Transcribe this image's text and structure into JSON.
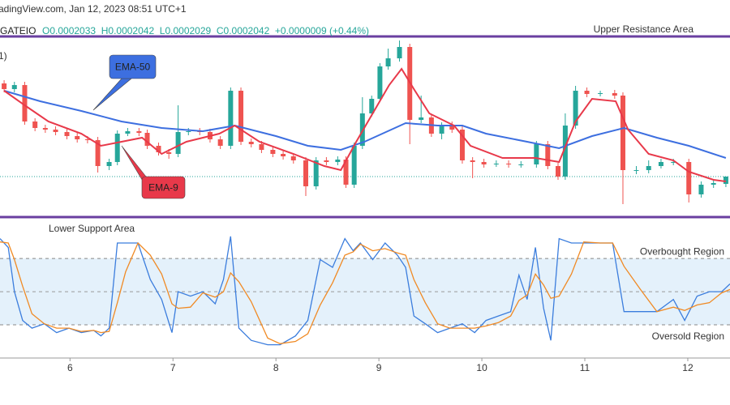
{
  "chart_data": [
    {
      "type": "candlestick",
      "header": "adingView.com, Jan 12, 2023 08:51 UTC+1",
      "symbol": "GATEIO",
      "ohlc_text": "O0.0002033  H0.0002042  L0.0002029  C0.0002042  +0.0000009 (+0.44%)",
      "fragment": "1)",
      "xlim": [
        5.32,
        12.41
      ],
      "ylim": [
        0.000199,
        0.0002225
      ],
      "up_color": "#26a69a",
      "down_color": "#ef5350",
      "x": [
        5.36,
        5.46,
        5.56,
        5.66,
        5.76,
        5.86,
        5.97,
        6.07,
        6.17,
        6.27,
        6.38,
        6.46,
        6.56,
        6.67,
        6.75,
        6.86,
        6.96,
        7.05,
        7.15,
        7.26,
        7.36,
        7.46,
        7.56,
        7.66,
        7.76,
        7.86,
        7.97,
        8.07,
        8.17,
        8.29,
        8.39,
        8.49,
        8.6,
        8.68,
        8.76,
        8.84,
        8.93,
        9.01,
        9.09,
        9.2,
        9.3,
        9.41,
        9.51,
        9.61,
        9.71,
        9.81,
        9.91,
        10.02,
        10.14,
        10.26,
        10.38,
        10.53,
        10.64,
        10.74,
        10.81,
        10.91,
        11.02,
        11.15,
        11.29,
        11.37,
        11.5,
        11.62,
        11.74,
        11.86,
        12.01,
        12.13,
        12.25,
        12.37
      ],
      "open": [
        0.0002157,
        0.000215,
        0.0002155,
        0.000211,
        0.0002102,
        0.00021,
        0.0002097,
        0.0002092,
        0.0002088,
        0.0002087,
        0.0002055,
        0.000206,
        0.0002095,
        0.0002098,
        0.0002096,
        0.000208,
        0.0002072,
        0.000207,
        0.0002097,
        0.0002098,
        0.0002097,
        0.0002088,
        0.000208,
        0.0002148,
        0.0002085,
        0.0002082,
        0.0002075,
        0.000207,
        0.0002067,
        0.0002062,
        0.000203,
        0.0002062,
        0.000206,
        0.0002063,
        0.0002032,
        0.000208,
        0.000212,
        0.0002138,
        0.0002178,
        0.0002188,
        0.0002202,
        0.0002112,
        0.0002115,
        0.0002095,
        0.0002105,
        0.00021,
        0.0002062,
        0.000206,
        0.0002057,
        0.0002058,
        0.0002057,
        0.0002057,
        0.0002082,
        0.0002055,
        0.0002042,
        0.0002105,
        0.0002148,
        0.0002144,
        0.0002145,
        0.0002142,
        0.000205,
        0.000205,
        0.0002055,
        0.000206,
        0.000206,
        0.000202,
        0.0002032,
        0.0002033
      ],
      "high": [
        0.0002161,
        0.0002159,
        0.0002159,
        0.0002114,
        0.0002106,
        0.0002104,
        0.0002101,
        0.0002096,
        0.0002092,
        0.0002091,
        0.0002064,
        0.0002099,
        0.0002102,
        0.0002102,
        0.00021,
        0.0002084,
        0.0002076,
        0.000213,
        0.0002102,
        0.0002102,
        0.0002101,
        0.0002092,
        0.0002152,
        0.0002152,
        0.0002089,
        0.0002086,
        0.0002079,
        0.0002074,
        0.0002071,
        0.0002066,
        0.0002066,
        0.0002066,
        0.0002067,
        0.0002067,
        0.0002084,
        0.000214,
        0.0002142,
        0.0002182,
        0.00022,
        0.000221,
        0.0002206,
        0.0002142,
        0.0002119,
        0.0002109,
        0.000211,
        0.0002104,
        0.0002066,
        0.0002064,
        0.0002062,
        0.0002062,
        0.0002061,
        0.0002086,
        0.0002086,
        0.0002059,
        0.000212,
        0.0002154,
        0.0002152,
        0.0002148,
        0.0002149,
        0.0002146,
        0.0002055,
        0.0002062,
        0.0002064,
        0.0002064,
        0.0002064,
        0.0002036,
        0.0002038,
        0.0002042
      ],
      "low": [
        0.0002146,
        0.0002146,
        0.0002106,
        0.0002098,
        0.0002096,
        0.0002093,
        0.0002088,
        0.0002084,
        0.0002083,
        0.0002047,
        0.000205,
        0.0002056,
        0.0002092,
        0.0002092,
        0.0002076,
        0.0002068,
        0.0002064,
        0.0002066,
        0.0002093,
        0.0002093,
        0.0002084,
        0.0002076,
        0.0002076,
        0.0002081,
        0.0002078,
        0.0002071,
        0.0002066,
        0.0002063,
        0.0002058,
        0.0002018,
        0.0002026,
        0.0002056,
        0.0002056,
        0.0002028,
        0.0002028,
        0.0002076,
        0.0002116,
        0.0002134,
        0.0002174,
        0.0002184,
        0.0002082,
        0.0002108,
        0.0002091,
        0.0002088,
        0.0002096,
        0.0002058,
        0.000204,
        0.0002053,
        0.0002054,
        0.0002053,
        0.0002053,
        0.0002053,
        0.0002051,
        0.0002038,
        0.0002038,
        0.0002101,
        0.000214,
        0.0002141,
        0.0002138,
        0.0002008,
        0.0002045,
        0.0002046,
        0.0002052,
        0.0002056,
        0.000201,
        0.0002016,
        0.0002028,
        0.0002029
      ],
      "close": [
        0.000215,
        0.0002155,
        0.000211,
        0.0002102,
        0.00021,
        0.0002097,
        0.0002092,
        0.0002088,
        0.0002087,
        0.0002055,
        0.000206,
        0.0002095,
        0.0002098,
        0.0002096,
        0.000208,
        0.0002072,
        0.000207,
        0.0002097,
        0.0002098,
        0.0002097,
        0.0002088,
        0.000208,
        0.0002148,
        0.0002085,
        0.0002082,
        0.0002075,
        0.000207,
        0.0002067,
        0.0002062,
        0.000203,
        0.0002062,
        0.000206,
        0.0002063,
        0.0002032,
        0.000208,
        0.000212,
        0.0002138,
        0.0002178,
        0.0002188,
        0.0002202,
        0.0002112,
        0.0002115,
        0.0002095,
        0.0002105,
        0.00021,
        0.0002062,
        0.000206,
        0.0002057,
        0.0002058,
        0.0002057,
        0.0002057,
        0.0002082,
        0.0002055,
        0.0002042,
        0.0002105,
        0.0002148,
        0.0002144,
        0.0002145,
        0.0002142,
        0.000205,
        0.000205,
        0.0002055,
        0.000206,
        0.000206,
        0.000202,
        0.0002032,
        0.0002034,
        0.0002042
      ],
      "series": [
        {
          "name": "EMA-50",
          "color": "#3d6fe0",
          "x": [
            5.36,
            5.71,
            6.11,
            6.5,
            6.89,
            7.29,
            7.6,
            8.0,
            8.31,
            8.63,
            8.86,
            9.26,
            9.57,
            9.81,
            10.04,
            10.44,
            10.75,
            11.07,
            11.38,
            11.7,
            12.01,
            12.37
          ],
          "values": [
            0.0002148,
            0.0002135,
            0.0002123,
            0.000211,
            0.0002102,
            0.0002098,
            0.0002105,
            0.0002092,
            0.000208,
            0.0002075,
            0.0002085,
            0.0002108,
            0.0002105,
            0.0002105,
            0.0002095,
            0.0002085,
            0.0002077,
            0.0002092,
            0.0002102,
            0.000209,
            0.000208,
            0.0002065
          ]
        },
        {
          "name": "EMA-9",
          "color": "#e8394a",
          "x": [
            5.36,
            5.56,
            5.79,
            6.11,
            6.3,
            6.5,
            6.7,
            6.89,
            7.13,
            7.45,
            7.6,
            7.84,
            8.17,
            8.47,
            8.63,
            8.78,
            8.94,
            9.1,
            9.22,
            9.34,
            9.49,
            9.73,
            9.89,
            10.2,
            10.52,
            10.75,
            10.91,
            11.07,
            11.3,
            11.42,
            11.62,
            11.86,
            12.01,
            12.25,
            12.37
          ],
          "values": [
            0.0002148,
            0.000213,
            0.000211,
            0.0002095,
            0.000208,
            0.0002085,
            0.000209,
            0.000207,
            0.0002085,
            0.0002095,
            0.0002105,
            0.0002085,
            0.000207,
            0.0002055,
            0.000205,
            0.0002085,
            0.000212,
            0.0002155,
            0.0002175,
            0.000215,
            0.000212,
            0.0002105,
            0.000208,
            0.0002065,
            0.0002065,
            0.000206,
            0.000211,
            0.0002138,
            0.0002135,
            0.00021,
            0.000207,
            0.0002062,
            0.0002048,
            0.0002038,
            0.0002036
          ]
        }
      ],
      "levels": [
        {
          "label": "Upper Resistance Area",
          "value": 0.0002215,
          "color": "#6a3fa0"
        },
        {
          "label": "Lower Support Area",
          "value": 0.0001992,
          "color": "#6a3fa0"
        }
      ],
      "price_line": 0.0002042,
      "price_line_color": "#26a69a"
    },
    {
      "type": "line",
      "xlim": [
        5.32,
        12.41
      ],
      "ylim": [
        -10,
        116
      ],
      "xticks": [
        6,
        7,
        8,
        9,
        10,
        11,
        12
      ],
      "x": [
        5.32,
        5.4,
        5.46,
        5.54,
        5.63,
        5.75,
        5.87,
        5.99,
        6.11,
        6.23,
        6.3,
        6.38,
        6.46,
        6.54,
        6.66,
        6.78,
        6.89,
        6.99,
        7.05,
        7.17,
        7.29,
        7.41,
        7.49,
        7.56,
        7.64,
        7.76,
        7.92,
        8.04,
        8.19,
        8.31,
        8.43,
        8.55,
        8.67,
        8.75,
        8.82,
        8.94,
        9.06,
        9.18,
        9.26,
        9.34,
        9.45,
        9.57,
        9.69,
        9.81,
        9.93,
        10.04,
        10.16,
        10.28,
        10.36,
        10.44,
        10.52,
        10.6,
        10.67,
        10.75,
        10.87,
        10.99,
        11.15,
        11.27,
        11.38,
        11.54,
        11.7,
        11.86,
        11.97,
        12.09,
        12.21,
        12.33,
        12.41
      ],
      "series": [
        {
          "color": "#3b7ddd",
          "values": [
            98,
            90,
            50,
            24,
            17,
            21,
            13,
            17,
            13,
            15,
            10,
            17,
            94,
            94,
            94,
            61,
            43,
            13,
            50,
            46,
            50,
            39,
            61,
            100,
            17,
            6,
            2,
            2,
            10,
            24,
            79,
            72,
            98,
            87,
            94,
            79,
            94,
            83,
            72,
            28,
            21,
            13,
            17,
            21,
            13,
            24,
            28,
            32,
            65,
            43,
            90,
            35,
            6,
            98,
            94,
            94,
            94,
            94,
            32,
            32,
            32,
            43,
            24,
            46,
            50,
            50,
            57
          ]
        },
        {
          "color": "#f08a24",
          "values": [
            95,
            94,
            79,
            55,
            30,
            21,
            17,
            17,
            14,
            15,
            13,
            14,
            40,
            68,
            94,
            83,
            66,
            39,
            35,
            36,
            49,
            45,
            50,
            67,
            59,
            41,
            8,
            3,
            5,
            12,
            38,
            58,
            83,
            86,
            93,
            87,
            89,
            85,
            83,
            61,
            40,
            21,
            17,
            17,
            17,
            19,
            22,
            28,
            42,
            47,
            66,
            56,
            44,
            46,
            66,
            95,
            94,
            94,
            73,
            52,
            32,
            36,
            33,
            38,
            40,
            49,
            52
          ]
        }
      ],
      "bands": [
        {
          "label": "Overbought Region",
          "value": 80
        },
        {
          "label": "Oversold Region",
          "value": 20
        }
      ],
      "midline": 50,
      "band_color": "#e4f1fb"
    }
  ]
}
